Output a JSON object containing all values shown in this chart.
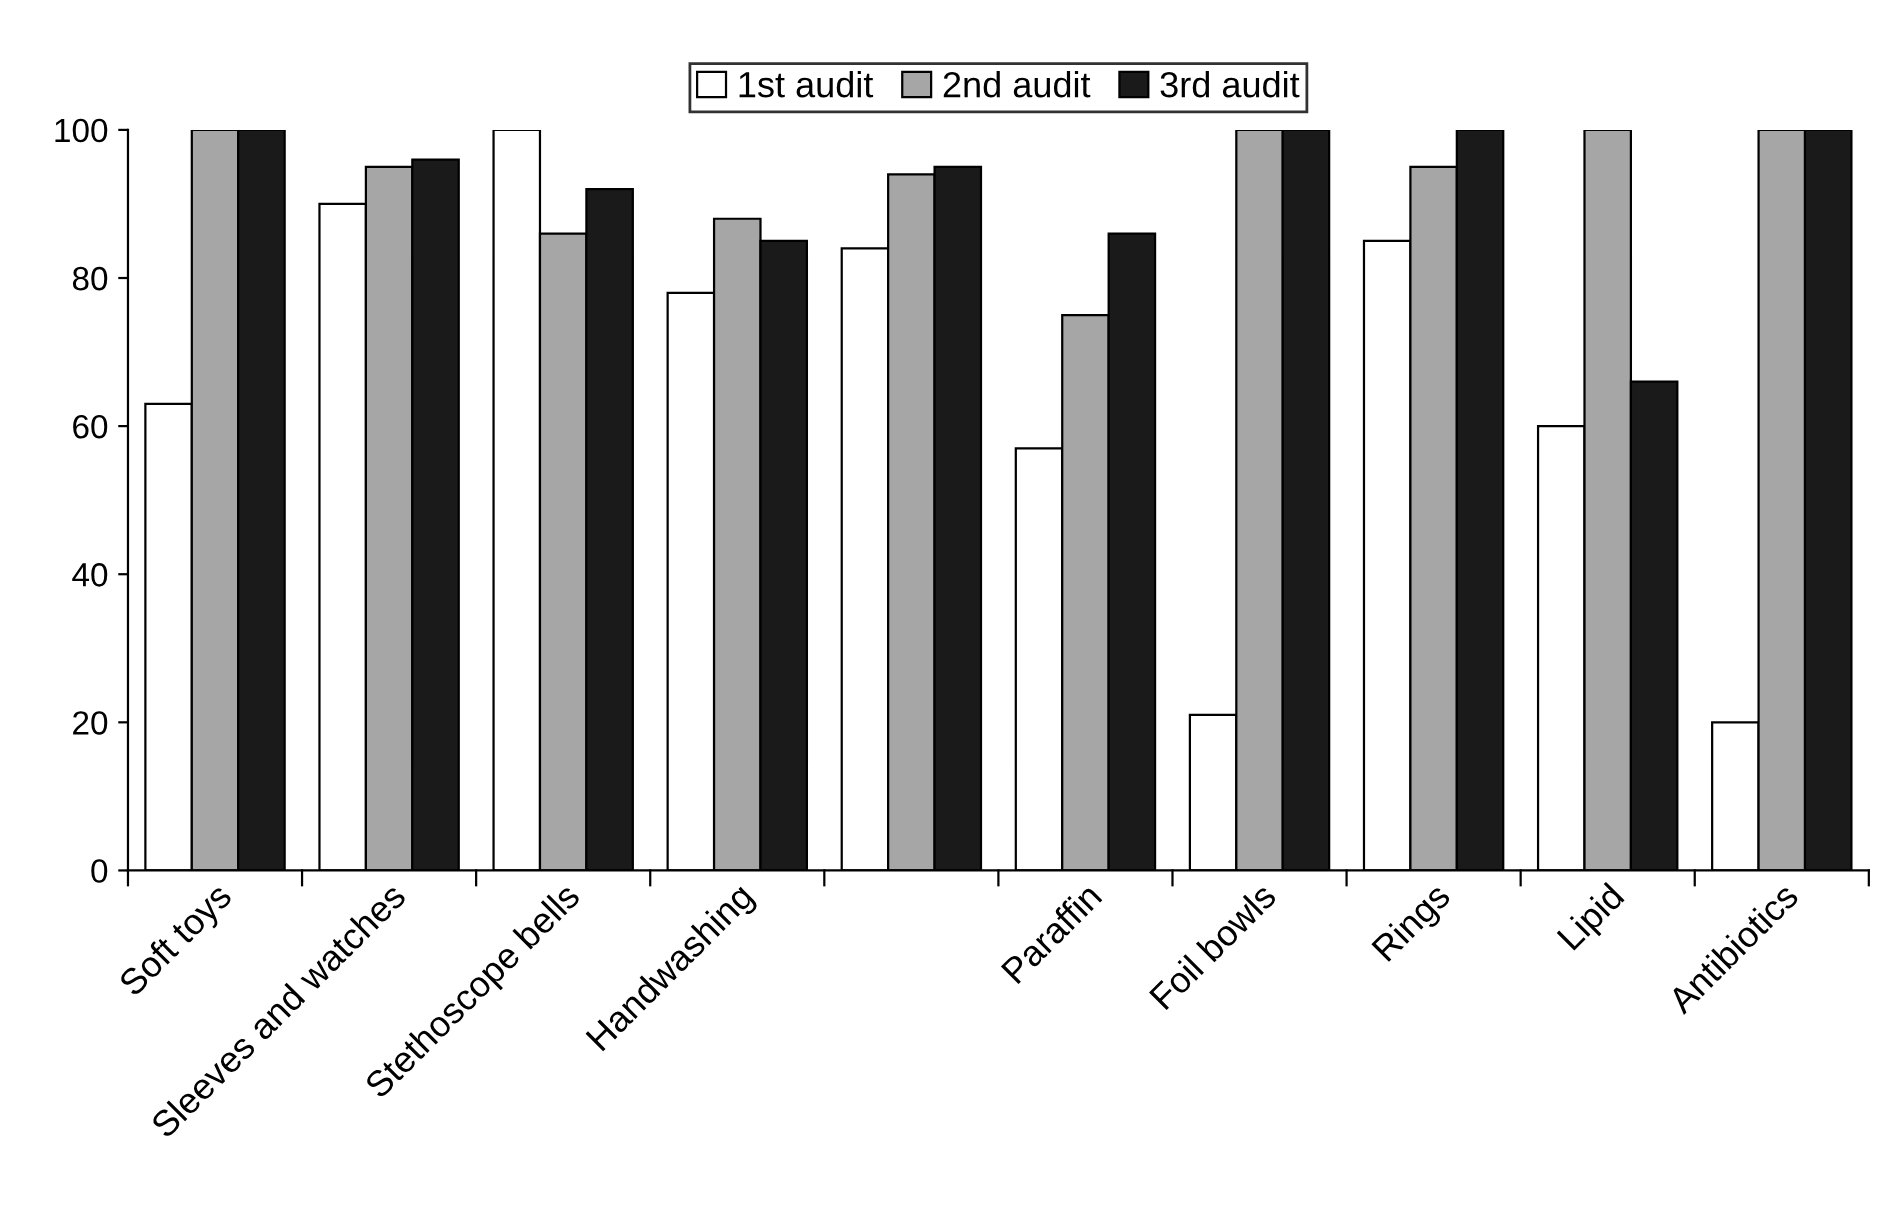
{
  "chart_data": {
    "type": "bar",
    "categories": [
      "Soft toys",
      "Sleeves and watches",
      "Stethoscope bells",
      "Handwashing",
      null,
      "Paraffin",
      "Foil bowls",
      "Rings",
      "Lipid",
      "Antibiotics"
    ],
    "series": [
      {
        "name": "1st audit",
        "color": "#ffffff",
        "values": [
          63,
          90,
          100,
          78,
          84,
          57,
          21,
          85,
          60,
          20
        ]
      },
      {
        "name": "2nd audit",
        "color": "#a6a6a6",
        "values": [
          100,
          95,
          86,
          88,
          94,
          75,
          100,
          95,
          100,
          100
        ]
      },
      {
        "name": "3rd audit",
        "color": "#1a1a1a",
        "values": [
          100,
          96,
          92,
          85,
          95,
          86,
          100,
          100,
          66,
          100
        ]
      }
    ],
    "ylim": [
      0,
      100
    ],
    "yticks": [
      0,
      20,
      40,
      60,
      80,
      100
    ],
    "grid": false,
    "legend": "top"
  }
}
